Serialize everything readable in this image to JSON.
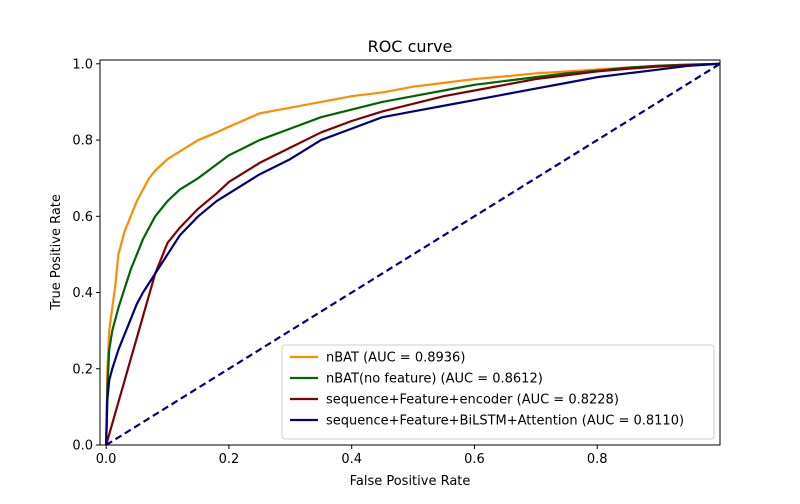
{
  "chart_data": {
    "type": "line",
    "title": "ROC curve",
    "xlabel": "False Positive Rate",
    "ylabel": "True Positive Rate",
    "xlim": [
      -0.01,
      1.0
    ],
    "ylim": [
      0.0,
      1.01
    ],
    "xticks": [
      0.0,
      0.2,
      0.4,
      0.6,
      0.8
    ],
    "xtick_labels": [
      "0.0",
      "0.2",
      "0.4",
      "0.6",
      "0.8"
    ],
    "yticks": [
      0.0,
      0.2,
      0.4,
      0.6,
      0.8,
      1.0
    ],
    "ytick_labels": [
      "0.0",
      "0.2",
      "0.4",
      "0.6",
      "0.8",
      "1.0"
    ],
    "grid": false,
    "legend_position": "lower right",
    "series": [
      {
        "name": "nBAT (AUC = 0.8936)",
        "color": "#ff8c00",
        "style": "solid",
        "x": [
          0.0,
          0.002,
          0.005,
          0.01,
          0.015,
          0.02,
          0.03,
          0.04,
          0.05,
          0.06,
          0.07,
          0.08,
          0.1,
          0.12,
          0.15,
          0.18,
          0.2,
          0.25,
          0.3,
          0.35,
          0.4,
          0.45,
          0.5,
          0.55,
          0.6,
          0.65,
          0.7,
          0.75,
          0.8,
          0.85,
          0.9,
          0.95,
          1.0
        ],
        "y": [
          0.0,
          0.2,
          0.3,
          0.36,
          0.42,
          0.5,
          0.56,
          0.6,
          0.64,
          0.67,
          0.7,
          0.72,
          0.75,
          0.77,
          0.8,
          0.82,
          0.835,
          0.87,
          0.885,
          0.9,
          0.915,
          0.925,
          0.94,
          0.95,
          0.96,
          0.967,
          0.975,
          0.98,
          0.985,
          0.99,
          0.995,
          0.998,
          1.0
        ]
      },
      {
        "name": "nBAT(no feature) (AUC = 0.8612)",
        "color": "#006400",
        "style": "solid",
        "x": [
          0.0,
          0.002,
          0.005,
          0.01,
          0.02,
          0.03,
          0.04,
          0.05,
          0.06,
          0.08,
          0.1,
          0.12,
          0.15,
          0.2,
          0.25,
          0.3,
          0.35,
          0.4,
          0.45,
          0.5,
          0.55,
          0.6,
          0.65,
          0.7,
          0.75,
          0.8,
          0.85,
          0.9,
          0.95,
          1.0
        ],
        "y": [
          0.0,
          0.15,
          0.25,
          0.3,
          0.36,
          0.41,
          0.46,
          0.5,
          0.54,
          0.6,
          0.64,
          0.67,
          0.7,
          0.76,
          0.8,
          0.83,
          0.86,
          0.88,
          0.9,
          0.915,
          0.93,
          0.945,
          0.955,
          0.965,
          0.975,
          0.982,
          0.99,
          0.995,
          0.998,
          1.0
        ]
      },
      {
        "name": "sequence+Feature+encoder (AUC = 0.8228)",
        "color": "#800000",
        "style": "solid",
        "x": [
          0.0,
          0.08,
          0.1,
          0.12,
          0.15,
          0.18,
          0.2,
          0.25,
          0.3,
          0.35,
          0.4,
          0.45,
          0.5,
          0.55,
          0.6,
          0.65,
          0.7,
          0.75,
          0.8,
          0.85,
          0.9,
          0.95,
          1.0
        ],
        "y": [
          0.0,
          0.45,
          0.53,
          0.57,
          0.62,
          0.66,
          0.69,
          0.74,
          0.78,
          0.82,
          0.85,
          0.875,
          0.895,
          0.915,
          0.93,
          0.945,
          0.96,
          0.97,
          0.98,
          0.987,
          0.993,
          0.997,
          1.0
        ]
      },
      {
        "name": "sequence+Feature+BiLSTM+Attention (AUC = 0.8110)",
        "color": "#000080",
        "style": "solid",
        "x": [
          0.0,
          0.002,
          0.005,
          0.01,
          0.02,
          0.03,
          0.04,
          0.05,
          0.06,
          0.08,
          0.1,
          0.12,
          0.15,
          0.18,
          0.2,
          0.25,
          0.3,
          0.35,
          0.4,
          0.45,
          0.5,
          0.55,
          0.6,
          0.65,
          0.7,
          0.75,
          0.8,
          0.85,
          0.9,
          0.95,
          1.0
        ],
        "y": [
          0.0,
          0.12,
          0.17,
          0.2,
          0.25,
          0.29,
          0.33,
          0.37,
          0.4,
          0.45,
          0.5,
          0.55,
          0.6,
          0.64,
          0.66,
          0.71,
          0.75,
          0.8,
          0.83,
          0.86,
          0.875,
          0.89,
          0.905,
          0.92,
          0.935,
          0.95,
          0.965,
          0.975,
          0.985,
          0.995,
          1.0
        ]
      },
      {
        "name": "",
        "color": "#000080",
        "style": "dashed",
        "x": [
          0.0,
          1.0
        ],
        "y": [
          0.0,
          1.0
        ]
      }
    ]
  }
}
